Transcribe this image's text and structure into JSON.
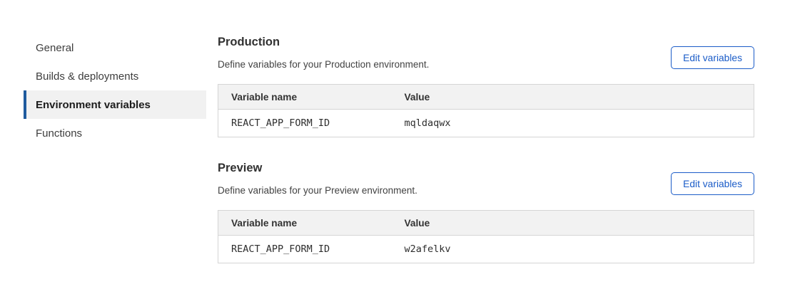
{
  "sidebar": {
    "items": [
      {
        "label": "General",
        "active": false
      },
      {
        "label": "Builds & deployments",
        "active": false
      },
      {
        "label": "Environment variables",
        "active": true
      },
      {
        "label": "Functions",
        "active": false
      }
    ]
  },
  "sections": [
    {
      "title": "Production",
      "description": "Define variables for your Production environment.",
      "button_label": "Edit variables",
      "table": {
        "headers": [
          "Variable name",
          "Value"
        ],
        "rows": [
          {
            "name": "REACT_APP_FORM_ID",
            "value": "mqldaqwx"
          }
        ]
      }
    },
    {
      "title": "Preview",
      "description": "Define variables for your Preview environment.",
      "button_label": "Edit variables",
      "table": {
        "headers": [
          "Variable name",
          "Value"
        ],
        "rows": [
          {
            "name": "REACT_APP_FORM_ID",
            "value": "w2afelkv"
          }
        ]
      }
    }
  ],
  "colors": {
    "accent_blue": "#1b5cc8",
    "active_nav_border": "#1f5b9e",
    "active_nav_bg": "#f1f1f1",
    "table_header_bg": "#f2f2f2",
    "table_border": "#d5d5d5"
  }
}
